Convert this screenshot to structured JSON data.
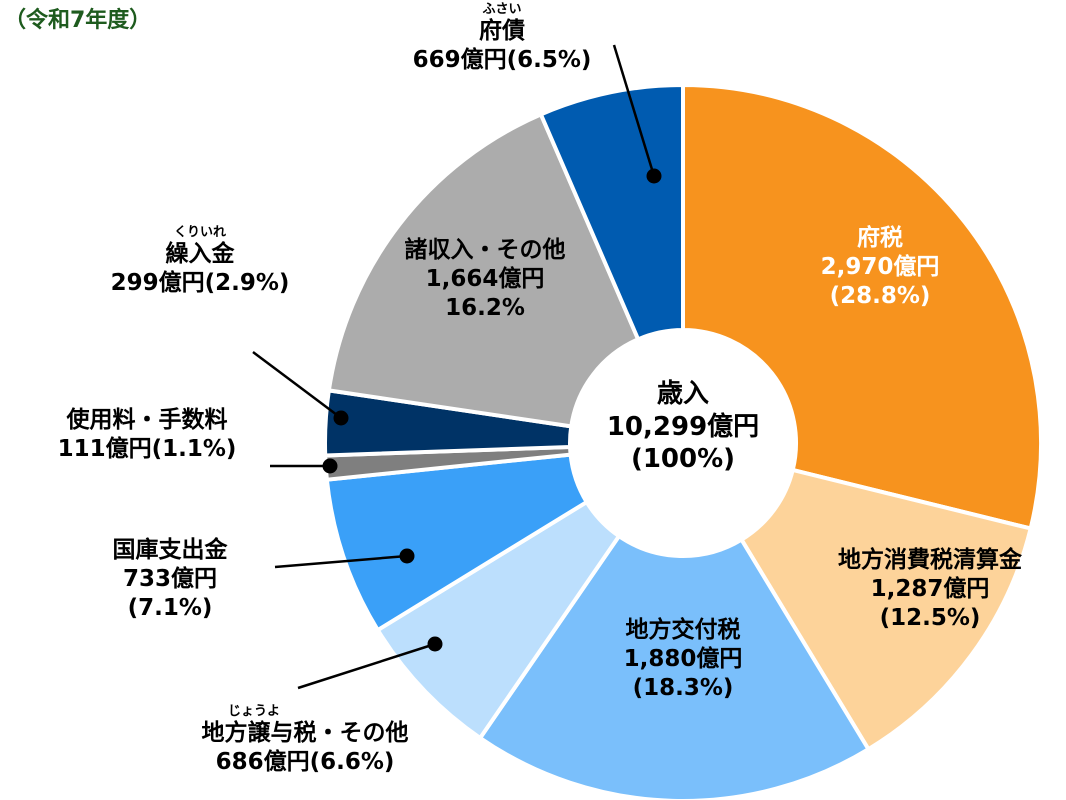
{
  "header": {
    "year_label": "（令和7年度）"
  },
  "center": {
    "title": "歳入",
    "amount": "10,299億円",
    "percent": "(100%)"
  },
  "labels": {
    "futax": {
      "name": "府税",
      "amount": "2,970億円",
      "percent": "(28.8%)"
    },
    "seisan": {
      "name": "地方消費税清算金",
      "amount": "1,287億円",
      "percent": "(12.5%)"
    },
    "koufu": {
      "name": "地方交付税",
      "amount": "1,880億円",
      "percent": "(18.3%)"
    },
    "jouyo": {
      "ruby": "じょうよ",
      "name": "地方譲与税・その他",
      "amount_percent": "686億円(6.6%)"
    },
    "kokko": {
      "name": "国庫支出金",
      "amount": "733億円",
      "percent": "(7.1%)"
    },
    "shiyou": {
      "name": "使用料・手数料",
      "amount_percent": "111億円(1.1%)"
    },
    "kurire": {
      "ruby": "くりいれ",
      "name": "繰入金",
      "amount_percent": "299億円(2.9%)"
    },
    "shoshu": {
      "name": "諸収入・その他",
      "amount": "1,664億円",
      "percent": "16.2%"
    },
    "fusai": {
      "ruby": "ふさい",
      "name": "府債",
      "amount_percent": "669億円(6.5%)"
    }
  },
  "chart_data": {
    "type": "pie",
    "subtype": "donut",
    "title": "歳入 10,299億円 (100%)",
    "subtitle": "（令和7年度）",
    "unit": "億円",
    "total": 10299,
    "start_angle_deg": 0,
    "direction": "clockwise",
    "categories": [
      "府税",
      "地方消費税清算金",
      "地方交付税",
      "地方譲与税・その他",
      "国庫支出金",
      "使用料・手数料",
      "繰入金",
      "諸収入・その他",
      "府債"
    ],
    "values": [
      2970,
      1287,
      1880,
      686,
      733,
      111,
      299,
      1664,
      669
    ],
    "percents": [
      28.8,
      12.5,
      18.3,
      6.6,
      7.1,
      1.1,
      2.9,
      16.2,
      6.5
    ],
    "colors": [
      "#f7931e",
      "#fdd39a",
      "#7abffb",
      "#bcdffd",
      "#3aa0f8",
      "#7f7f7f",
      "#003366",
      "#acacac",
      "#005bb0"
    ],
    "legend": "none (direct labels)"
  }
}
